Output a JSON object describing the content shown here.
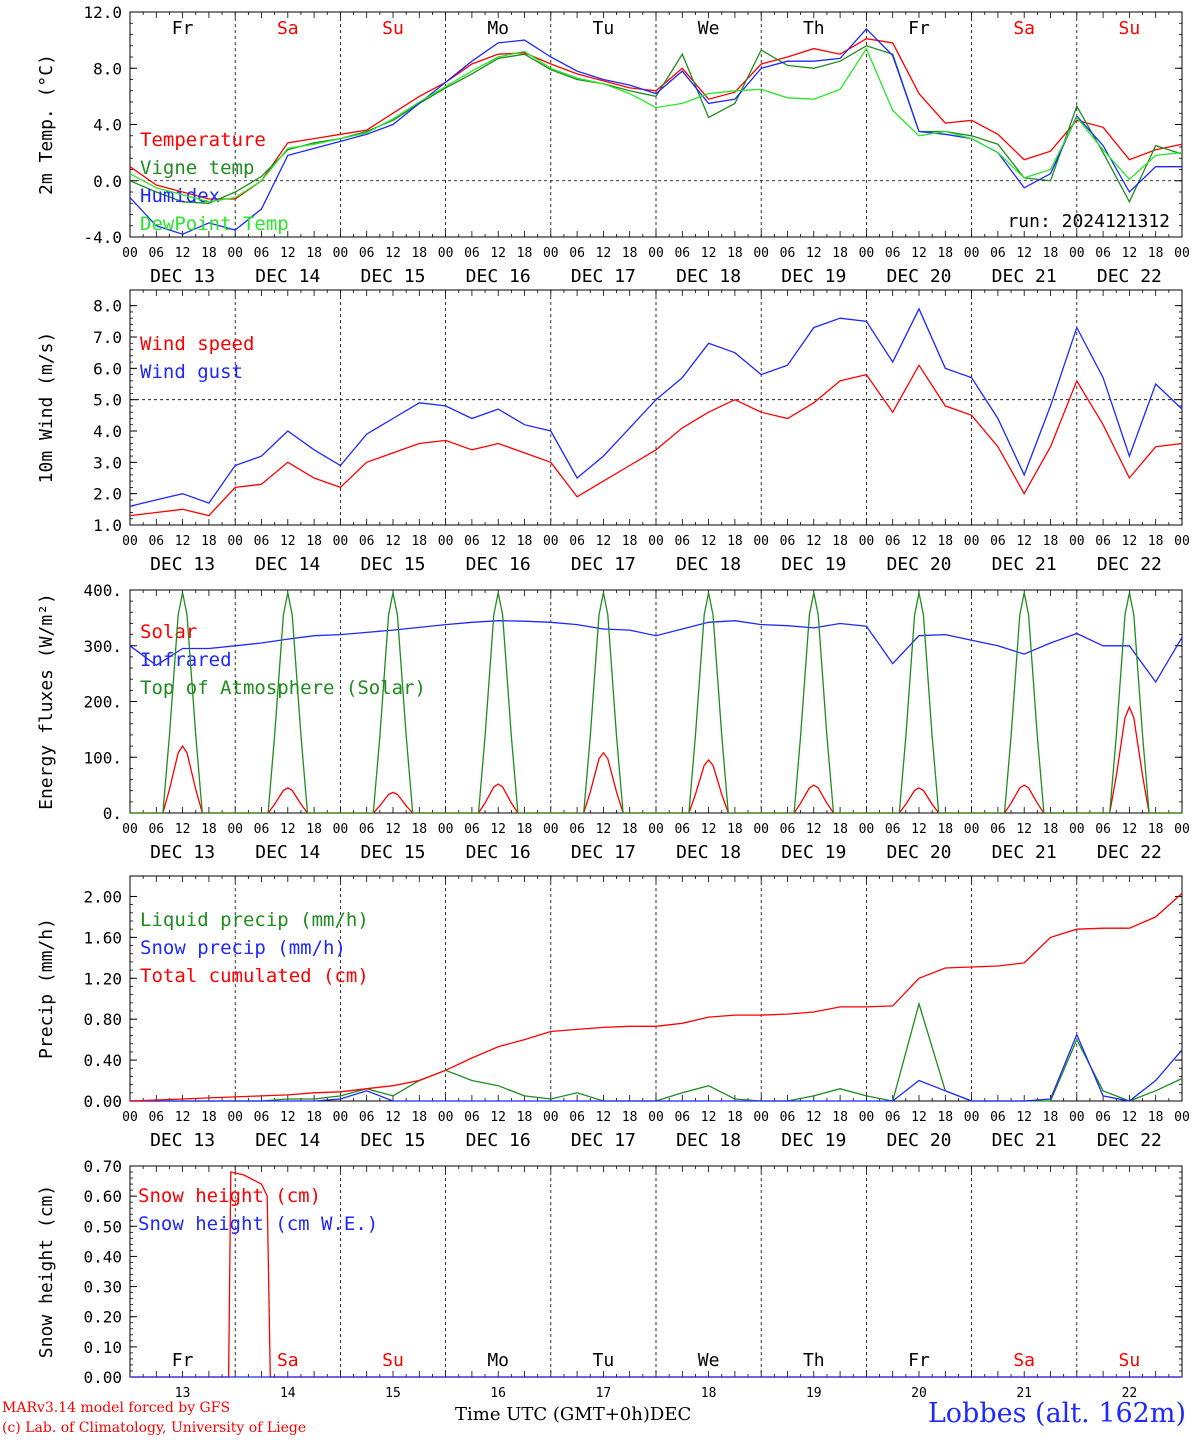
{
  "run_label": "run: 2024121312",
  "x_axis_title": "Time UTC (GMT+0h)",
  "month_label": "DEC",
  "station_label": "Lobbes (alt. 162m)",
  "credits": {
    "line1": "MARv3.14 model forced by GFS",
    "line2": "(c) Lab. of Climatology, University of Liege"
  },
  "day_names": [
    "Fr",
    "Sa",
    "Su",
    "Mo",
    "Tu",
    "We",
    "Th",
    "Fr",
    "Sa",
    "Su"
  ],
  "weekend_days": [
    1,
    2,
    8,
    9
  ],
  "date_labels": [
    "DEC 13",
    "DEC 14",
    "DEC 15",
    "DEC 16",
    "DEC 17",
    "DEC 18",
    "DEC 19",
    "DEC 20",
    "DEC 21",
    "DEC 22"
  ],
  "day_numbers": [
    "13",
    "14",
    "15",
    "16",
    "17",
    "18",
    "19",
    "20",
    "21",
    "22"
  ],
  "hour_ticks": [
    "00",
    "06",
    "12",
    "18"
  ],
  "colors": {
    "red": "#ff0000",
    "dark_green": "#1e8c1e",
    "blue": "#1e28ff",
    "light_green": "#28e628",
    "weekday": "#000000",
    "weekend": "#ff0000"
  },
  "chart_data": [
    {
      "type": "line",
      "ylabel": "2m Temp. (°C)",
      "ylim": [
        -4,
        12
      ],
      "yticks": [
        "-4.0",
        "0.0",
        "4.0",
        "8.0",
        "12.0"
      ],
      "reference_line": 0,
      "x_hours": [
        0,
        6,
        12,
        18,
        24,
        30,
        36,
        42,
        48,
        54,
        60,
        66,
        72,
        78,
        84,
        90,
        96,
        102,
        108,
        114,
        120,
        126,
        132,
        138,
        144,
        150,
        156,
        162,
        168,
        174,
        180,
        186,
        192,
        198,
        204,
        210,
        216,
        222,
        228,
        234,
        240
      ],
      "series": [
        {
          "name": "Temperature",
          "color": "#ff0000",
          "values": [
            1.0,
            -0.3,
            -0.8,
            -1.3,
            -1.3,
            0.0,
            2.7,
            3.0,
            3.3,
            3.6,
            4.8,
            6.0,
            7.0,
            8.3,
            9.0,
            9.1,
            8.3,
            7.6,
            7.1,
            6.6,
            6.4,
            8.0,
            5.8,
            6.3,
            8.3,
            8.8,
            9.4,
            9.0,
            10.1,
            9.8,
            6.2,
            4.1,
            4.3,
            3.3,
            1.5,
            2.1,
            4.3,
            3.8,
            1.5,
            2.2,
            2.6
          ]
        },
        {
          "name": "Vigne temp",
          "color": "#1e8c1e",
          "values": [
            0.0,
            -0.8,
            -1.5,
            -1.6,
            -0.8,
            0.3,
            2.2,
            2.7,
            3.0,
            3.5,
            4.3,
            5.5,
            6.6,
            7.6,
            8.7,
            9.0,
            7.9,
            7.2,
            6.9,
            6.4,
            6.0,
            9.0,
            4.5,
            5.5,
            9.3,
            8.2,
            8.0,
            8.5,
            9.6,
            9.0,
            3.5,
            3.5,
            3.2,
            2.6,
            0.2,
            0.0,
            5.3,
            2.0,
            -1.5,
            2.5,
            1.9
          ]
        },
        {
          "name": "Humidex",
          "color": "#1e28ff",
          "values": [
            -1.2,
            -3.2,
            -3.8,
            -3.0,
            -3.5,
            -2.0,
            1.8,
            2.3,
            2.8,
            3.3,
            4.0,
            5.5,
            7.0,
            8.5,
            9.8,
            10.0,
            8.8,
            7.8,
            7.2,
            6.8,
            6.2,
            7.8,
            5.5,
            5.8,
            8.0,
            8.5,
            8.5,
            8.7,
            10.8,
            8.9,
            3.5,
            3.3,
            3.0,
            2.0,
            -0.5,
            0.5,
            4.6,
            2.5,
            -0.8,
            1.0,
            1.0
          ]
        },
        {
          "name": "DewPoint Temp",
          "color": "#28e628",
          "values": [
            0.5,
            -0.5,
            -1.0,
            -1.5,
            -1.2,
            0.0,
            2.3,
            2.6,
            3.0,
            3.4,
            4.4,
            5.6,
            6.7,
            7.8,
            8.8,
            9.2,
            8.0,
            7.3,
            6.9,
            6.2,
            5.2,
            5.5,
            6.2,
            6.4,
            6.5,
            5.9,
            5.8,
            6.5,
            9.4,
            5.0,
            3.2,
            3.5,
            3.0,
            2.0,
            0.2,
            0.8,
            4.5,
            2.2,
            0.1,
            1.8,
            2.0
          ]
        }
      ]
    },
    {
      "type": "line",
      "ylabel": "10m Wind (m/s)",
      "ylim": [
        1,
        8.5
      ],
      "yticks": [
        "1.0",
        "2.0",
        "3.0",
        "4.0",
        "5.0",
        "6.0",
        "7.0",
        "8.0"
      ],
      "reference_line": 5,
      "x_hours": [
        0,
        6,
        12,
        18,
        24,
        30,
        36,
        42,
        48,
        54,
        60,
        66,
        72,
        78,
        84,
        90,
        96,
        102,
        108,
        114,
        120,
        126,
        132,
        138,
        144,
        150,
        156,
        162,
        168,
        174,
        180,
        186,
        192,
        198,
        204,
        210,
        216,
        222,
        228,
        234,
        240
      ],
      "series": [
        {
          "name": "Wind speed",
          "color": "#ff0000",
          "values": [
            1.3,
            1.4,
            1.5,
            1.3,
            2.2,
            2.3,
            3.0,
            2.5,
            2.2,
            3.0,
            3.3,
            3.6,
            3.7,
            3.4,
            3.6,
            3.3,
            3.0,
            1.9,
            2.4,
            2.9,
            3.4,
            4.1,
            4.6,
            5.0,
            4.6,
            4.4,
            4.9,
            5.6,
            5.8,
            4.6,
            6.1,
            4.8,
            4.5,
            3.5,
            2.0,
            3.5,
            5.6,
            4.2,
            2.5,
            3.5,
            3.6
          ]
        },
        {
          "name": "Wind gust",
          "color": "#1e28ff",
          "values": [
            1.6,
            1.8,
            2.0,
            1.7,
            2.9,
            3.2,
            4.0,
            3.4,
            2.9,
            3.9,
            4.4,
            4.9,
            4.8,
            4.4,
            4.7,
            4.2,
            4.0,
            2.5,
            3.2,
            4.1,
            5.0,
            5.7,
            6.8,
            6.5,
            5.8,
            6.1,
            7.3,
            7.6,
            7.5,
            6.2,
            7.9,
            6.0,
            5.7,
            4.4,
            2.6,
            4.8,
            7.3,
            5.7,
            3.2,
            5.5,
            4.7
          ]
        }
      ]
    },
    {
      "type": "line",
      "ylabel": "Energy fluxes (W/m²)",
      "ylim": [
        0,
        400
      ],
      "yticks": [
        "0.",
        "100.",
        "200.",
        "300.",
        "400."
      ],
      "x_hours": [
        0,
        6,
        12,
        18,
        24,
        30,
        36,
        42,
        48,
        54,
        60,
        66,
        72,
        78,
        84,
        90,
        96,
        102,
        108,
        114,
        120,
        126,
        132,
        138,
        144,
        150,
        156,
        162,
        168,
        174,
        180,
        186,
        192,
        198,
        204,
        210,
        216,
        222,
        228,
        234,
        240
      ],
      "series": [
        {
          "name": "Solar",
          "color": "#ff0000",
          "peaks": [
            120,
            45,
            37,
            52,
            108,
            95,
            50,
            45,
            50,
            190
          ]
        },
        {
          "name": "Infrared",
          "color": "#1e28ff",
          "values": [
            300,
            265,
            295,
            295,
            300,
            305,
            312,
            318,
            320,
            324,
            328,
            333,
            338,
            342,
            345,
            344,
            342,
            338,
            330,
            328,
            318,
            330,
            342,
            345,
            338,
            336,
            332,
            340,
            335,
            268,
            318,
            320,
            310,
            300,
            285,
            305,
            322,
            300,
            300,
            235,
            315
          ]
        },
        {
          "name": "Top of Atmosphere (Solar)",
          "color": "#1e8c1e",
          "peaks": [
            395,
            395,
            395,
            395,
            395,
            395,
            395,
            395,
            395,
            395
          ]
        }
      ]
    },
    {
      "type": "line",
      "ylabel": "Precip (mm/h)",
      "ylim": [
        0,
        2.2
      ],
      "yticks": [
        "0.00",
        "0.40",
        "0.80",
        "1.20",
        "1.60",
        "2.00"
      ],
      "x_hours": [
        0,
        6,
        12,
        18,
        24,
        30,
        36,
        42,
        48,
        54,
        60,
        66,
        72,
        78,
        84,
        90,
        96,
        102,
        108,
        114,
        120,
        126,
        132,
        138,
        144,
        150,
        156,
        162,
        168,
        174,
        180,
        186,
        192,
        198,
        204,
        210,
        216,
        222,
        228,
        234,
        240
      ],
      "series": [
        {
          "name": "Liquid precip (mm/h)",
          "color": "#1e8c1e",
          "values": [
            0,
            0,
            0,
            0,
            0,
            0,
            0.02,
            0.02,
            0.05,
            0.12,
            0.05,
            0.2,
            0.3,
            0.2,
            0.15,
            0.05,
            0.02,
            0.08,
            0,
            0,
            0,
            0.08,
            0.15,
            0.02,
            0,
            0,
            0.05,
            0.12,
            0.05,
            0,
            0.95,
            0.1,
            0,
            0,
            0,
            0,
            0.6,
            0.1,
            0,
            0.1,
            0.22
          ]
        },
        {
          "name": "Snow precip (mm/h)",
          "color": "#1e28ff",
          "values": [
            0,
            0,
            0,
            0,
            0,
            0,
            0,
            0,
            0.02,
            0.1,
            0,
            0,
            0,
            0,
            0,
            0,
            0,
            0,
            0,
            0,
            0,
            0,
            0,
            0,
            0,
            0,
            0,
            0,
            0,
            0,
            0.2,
            0.1,
            0,
            0,
            0,
            0.02,
            0.65,
            0.05,
            0,
            0.2,
            0.5
          ]
        },
        {
          "name": "Total cumulated (cm)",
          "color": "#ff0000",
          "values": [
            0,
            0.01,
            0.02,
            0.03,
            0.04,
            0.05,
            0.06,
            0.08,
            0.09,
            0.12,
            0.15,
            0.2,
            0.3,
            0.42,
            0.53,
            0.6,
            0.68,
            0.7,
            0.72,
            0.73,
            0.73,
            0.76,
            0.82,
            0.84,
            0.84,
            0.85,
            0.87,
            0.92,
            0.92,
            0.93,
            1.2,
            1.3,
            1.31,
            1.32,
            1.35,
            1.6,
            1.68,
            1.69,
            1.69,
            1.8,
            2.03
          ]
        }
      ]
    },
    {
      "type": "line",
      "ylabel": "Snow height (cm)",
      "ylim": [
        0,
        0.7
      ],
      "yticks": [
        "0.00",
        "0.10",
        "0.20",
        "0.30",
        "0.40",
        "0.50",
        "0.60",
        "0.70"
      ],
      "series": [
        {
          "name": "Snow height (cm)",
          "color": "#ff0000",
          "points": [
            [
              0,
              0
            ],
            [
              22.5,
              0
            ],
            [
              23,
              0.68
            ],
            [
              26,
              0.67
            ],
            [
              30,
              0.64
            ],
            [
              31.3,
              0.6
            ],
            [
              32,
              0
            ],
            [
              240,
              0
            ]
          ]
        },
        {
          "name": "Snow height (cm W.E.)",
          "color": "#1e28ff",
          "points": [
            [
              0,
              0
            ],
            [
              240,
              0
            ]
          ]
        }
      ]
    }
  ]
}
